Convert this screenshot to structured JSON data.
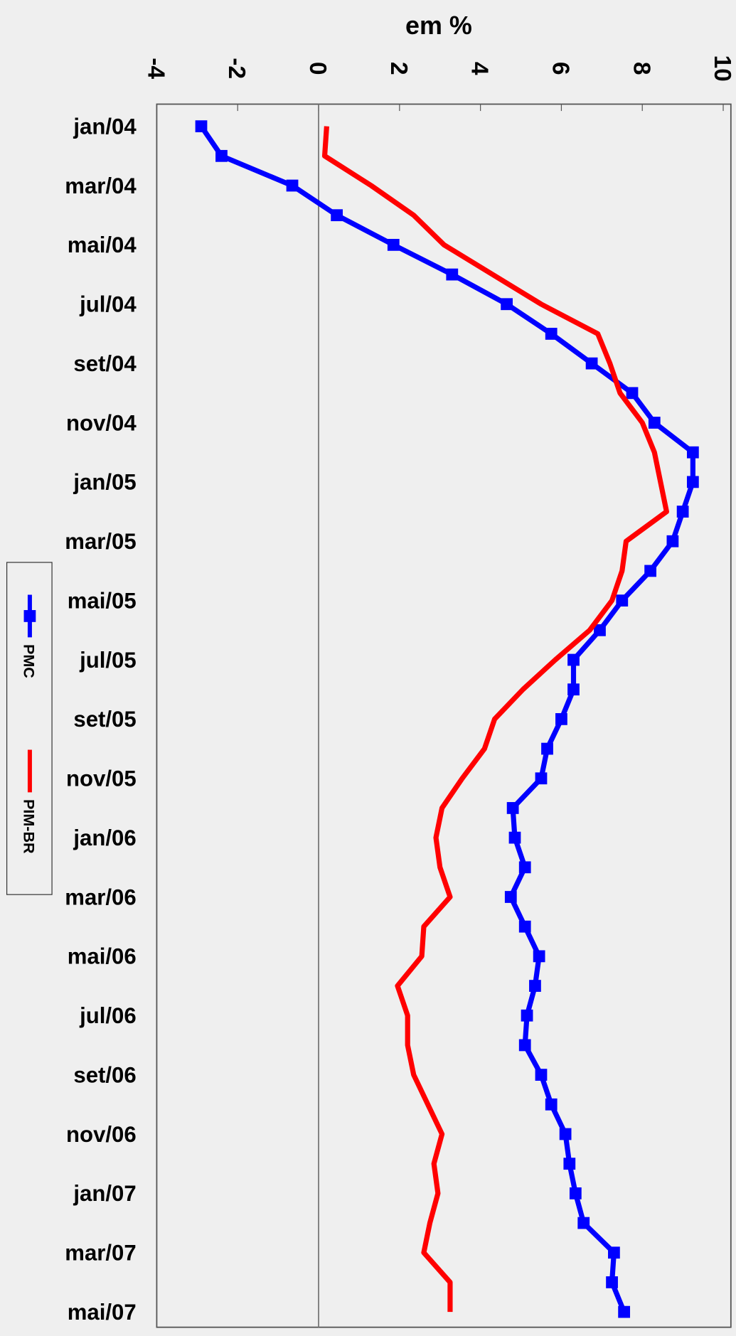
{
  "chart_data": {
    "type": "line",
    "title": "em %",
    "categories": [
      "jan/04",
      null,
      "mar/04",
      null,
      "mai/04",
      null,
      "jul/04",
      null,
      "set/04",
      null,
      "nov/04",
      null,
      "jan/05",
      null,
      "mar/05",
      null,
      "mai/05",
      null,
      "jul/05",
      null,
      "set/05",
      null,
      "nov/05",
      null,
      "jan/06",
      null,
      "mar/06",
      null,
      "mai/06",
      null,
      "jul/06",
      null,
      "set/06",
      null,
      "nov/06",
      null,
      "jan/07",
      null,
      "mar/07",
      null,
      "mai/07"
    ],
    "series": [
      {
        "name": "PMC",
        "color": "#0000ff",
        "markers": true,
        "values": [
          -2.9,
          -2.4,
          -0.65,
          0.45,
          1.85,
          3.3,
          4.65,
          5.75,
          6.75,
          7.75,
          8.3,
          9.25,
          9.25,
          9.0,
          8.75,
          8.2,
          7.5,
          6.95,
          6.3,
          6.3,
          6.0,
          5.65,
          5.5,
          4.8,
          4.85,
          5.1,
          4.75,
          5.1,
          5.45,
          5.35,
          5.15,
          5.1,
          5.5,
          5.75,
          6.1,
          6.2,
          6.35,
          6.55,
          7.3,
          7.25,
          7.55
        ]
      },
      {
        "name": "PIM-BR",
        "color": "#ff0000",
        "markers": false,
        "values": [
          0.2,
          0.15,
          1.3,
          2.35,
          3.1,
          4.3,
          5.5,
          6.9,
          7.2,
          7.45,
          8.0,
          8.3,
          8.45,
          8.6,
          7.6,
          7.5,
          7.25,
          6.7,
          5.85,
          5.05,
          4.35,
          4.1,
          3.55,
          3.05,
          2.9,
          3.0,
          3.25,
          2.6,
          2.55,
          1.95,
          2.2,
          2.2,
          2.35,
          2.7,
          3.05,
          2.85,
          2.95,
          2.75,
          2.6,
          3.25,
          3.25
        ]
      }
    ],
    "xlim": [
      -4,
      10
    ],
    "xticks": [
      -4,
      -2,
      0,
      2,
      4,
      6,
      8,
      10
    ],
    "legend": "left"
  }
}
